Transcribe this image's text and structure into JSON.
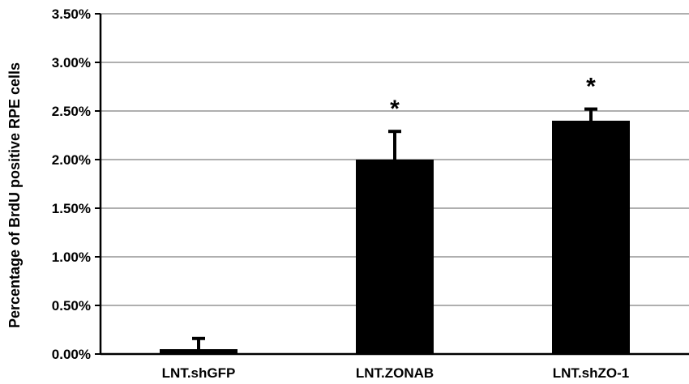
{
  "chart_data": {
    "type": "bar",
    "title": "",
    "xlabel": "",
    "ylabel": "Percentage of BrdU positive RPE cells",
    "categories": [
      "LNT.shGFP",
      "LNT.ZONAB",
      "LNT.shZO-1"
    ],
    "values": [
      0.05,
      2.0,
      2.4
    ],
    "error_bars": [
      0.11,
      0.29,
      0.12
    ],
    "significance": [
      "",
      "*",
      "*"
    ],
    "ylim": [
      0,
      3.5
    ],
    "yticks": [
      0,
      0.5,
      1.0,
      1.5,
      2.0,
      2.5,
      3.0,
      3.5
    ],
    "ytick_labels": [
      "0.00%",
      "0.50%",
      "1.00%",
      "1.50%",
      "2.00%",
      "2.50%",
      "3.00%",
      "3.50%"
    ],
    "grid": true,
    "bar_color": "#000000",
    "grid_color": "#7f7f7f"
  }
}
